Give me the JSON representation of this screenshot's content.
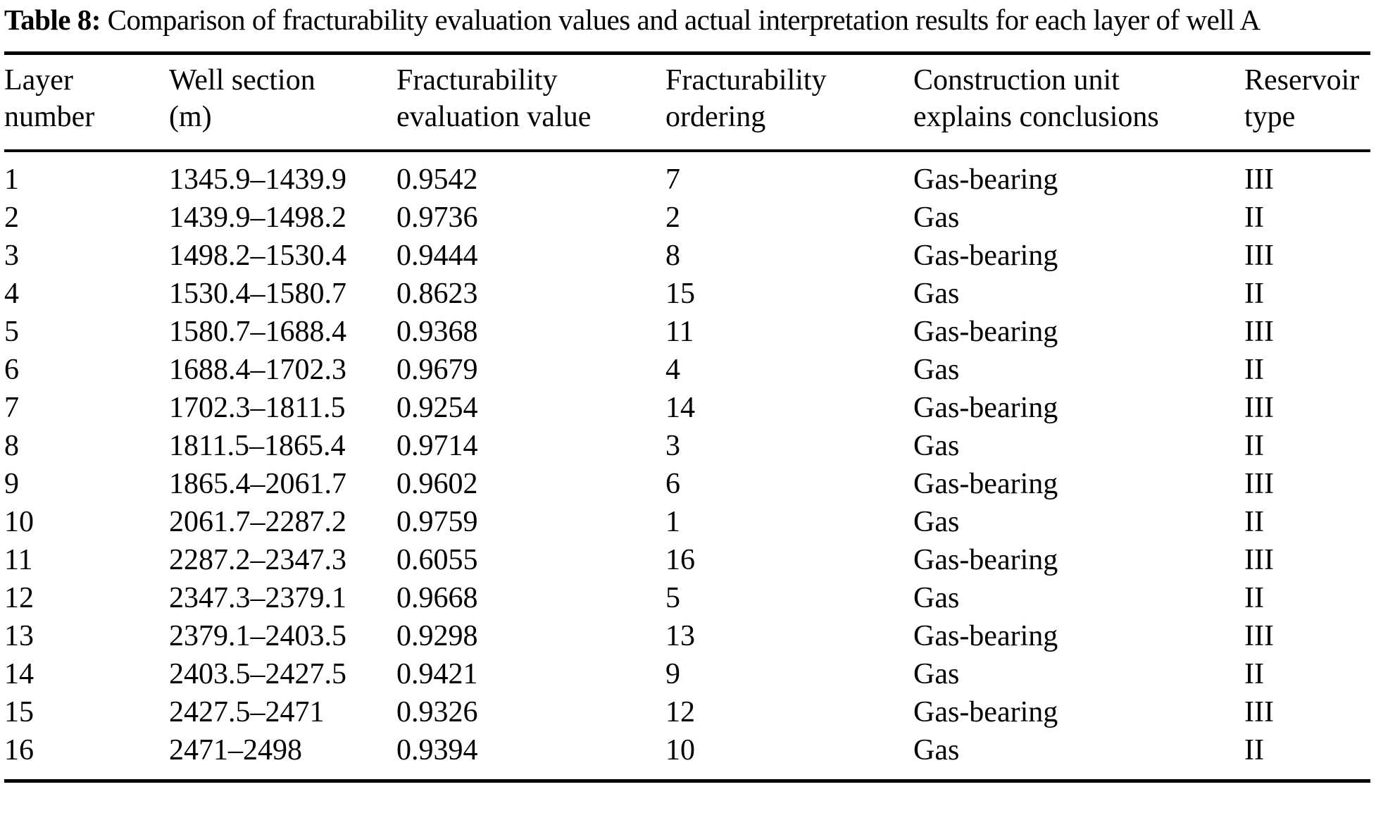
{
  "page": {
    "background_color": "#ffffff",
    "text_color": "#000000"
  },
  "title": {
    "label": "Table 8:",
    "text": " Comparison of fracturability evaluation values and actual interpretation results for each layer of well A"
  },
  "table": {
    "columns": [
      {
        "id": "layer",
        "line1": "Layer",
        "line2": "number"
      },
      {
        "id": "well_section",
        "line1": "Well section",
        "line2": "(m)"
      },
      {
        "id": "evaluation_value",
        "line1": "Fracturability",
        "line2": "evaluation value"
      },
      {
        "id": "ordering",
        "line1": "Fracturability",
        "line2": "ordering"
      },
      {
        "id": "conclusion",
        "line1": "Construction unit",
        "line2": "explains conclusions"
      },
      {
        "id": "reservoir_type",
        "line1": "Reservoir",
        "line2": "type"
      }
    ],
    "rows": [
      {
        "layer": "1",
        "well_section": "1345.9–1439.9",
        "evaluation_value": "0.9542",
        "ordering": "7",
        "conclusion": "Gas-bearing",
        "reservoir_type": "III"
      },
      {
        "layer": "2",
        "well_section": "1439.9–1498.2",
        "evaluation_value": "0.9736",
        "ordering": "2",
        "conclusion": "Gas",
        "reservoir_type": "II"
      },
      {
        "layer": "3",
        "well_section": "1498.2–1530.4",
        "evaluation_value": "0.9444",
        "ordering": "8",
        "conclusion": "Gas-bearing",
        "reservoir_type": "III"
      },
      {
        "layer": "4",
        "well_section": "1530.4–1580.7",
        "evaluation_value": "0.8623",
        "ordering": "15",
        "conclusion": "Gas",
        "reservoir_type": "II"
      },
      {
        "layer": "5",
        "well_section": "1580.7–1688.4",
        "evaluation_value": "0.9368",
        "ordering": "11",
        "conclusion": "Gas-bearing",
        "reservoir_type": "III"
      },
      {
        "layer": "6",
        "well_section": "1688.4–1702.3",
        "evaluation_value": "0.9679",
        "ordering": "4",
        "conclusion": "Gas",
        "reservoir_type": "II"
      },
      {
        "layer": "7",
        "well_section": "1702.3–1811.5",
        "evaluation_value": "0.9254",
        "ordering": "14",
        "conclusion": "Gas-bearing",
        "reservoir_type": "III"
      },
      {
        "layer": "8",
        "well_section": "1811.5–1865.4",
        "evaluation_value": "0.9714",
        "ordering": "3",
        "conclusion": "Gas",
        "reservoir_type": "II"
      },
      {
        "layer": "9",
        "well_section": "1865.4–2061.7",
        "evaluation_value": "0.9602",
        "ordering": "6",
        "conclusion": "Gas-bearing",
        "reservoir_type": "III"
      },
      {
        "layer": "10",
        "well_section": "2061.7–2287.2",
        "evaluation_value": "0.9759",
        "ordering": "1",
        "conclusion": "Gas",
        "reservoir_type": "II"
      },
      {
        "layer": "11",
        "well_section": "2287.2–2347.3",
        "evaluation_value": "0.6055",
        "ordering": "16",
        "conclusion": "Gas-bearing",
        "reservoir_type": "III"
      },
      {
        "layer": "12",
        "well_section": "2347.3–2379.1",
        "evaluation_value": "0.9668",
        "ordering": "5",
        "conclusion": "Gas",
        "reservoir_type": "II"
      },
      {
        "layer": "13",
        "well_section": "2379.1–2403.5",
        "evaluation_value": "0.9298",
        "ordering": "13",
        "conclusion": "Gas-bearing",
        "reservoir_type": "III"
      },
      {
        "layer": "14",
        "well_section": "2403.5–2427.5",
        "evaluation_value": "0.9421",
        "ordering": "9",
        "conclusion": "Gas",
        "reservoir_type": "II"
      },
      {
        "layer": "15",
        "well_section": "2427.5–2471",
        "evaluation_value": "0.9326",
        "ordering": "12",
        "conclusion": "Gas-bearing",
        "reservoir_type": "III"
      },
      {
        "layer": "16",
        "well_section": "2471–2498",
        "evaluation_value": "0.9394",
        "ordering": "10",
        "conclusion": "Gas",
        "reservoir_type": "II"
      }
    ]
  }
}
